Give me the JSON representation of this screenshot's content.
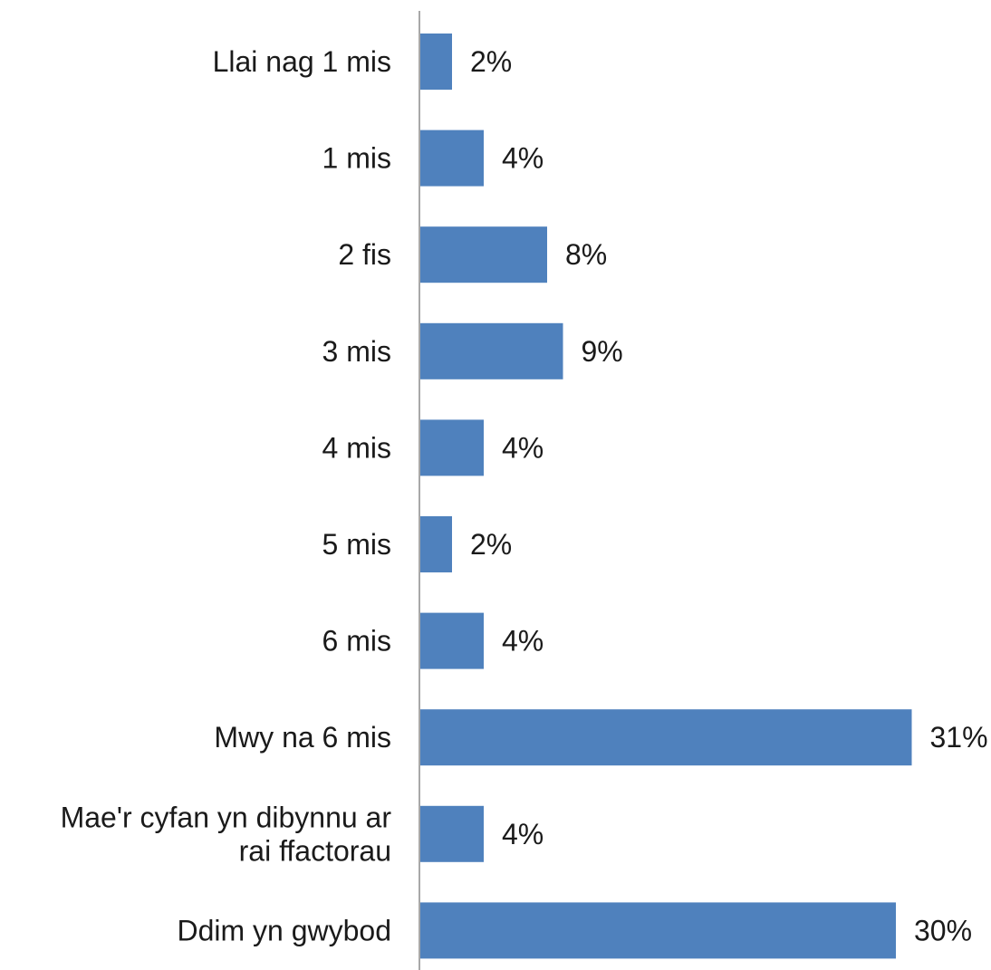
{
  "chart_data": {
    "type": "bar",
    "orientation": "horizontal",
    "categories": [
      [
        "Llai nag 1 mis"
      ],
      [
        "1 mis"
      ],
      [
        "2 fis"
      ],
      [
        "3 mis"
      ],
      [
        "4 mis"
      ],
      [
        "5 mis"
      ],
      [
        "6 mis"
      ],
      [
        "Mwy na 6 mis"
      ],
      [
        "Mae'r cyfan yn dibynnu ar",
        "rai ffactorau"
      ],
      [
        "Ddim yn gwybod"
      ]
    ],
    "values": [
      2,
      4,
      8,
      9,
      4,
      2,
      4,
      31,
      4,
      30
    ],
    "data_labels": [
      "2%",
      "4%",
      "8%",
      "9%",
      "4%",
      "2%",
      "4%",
      "31%",
      "4%",
      "30%"
    ],
    "unit": "%",
    "xlim": [
      0,
      31
    ],
    "grid": false,
    "legend": "none",
    "bar_color": "#4f81bd",
    "axis_color": "#8c8c8c"
  }
}
